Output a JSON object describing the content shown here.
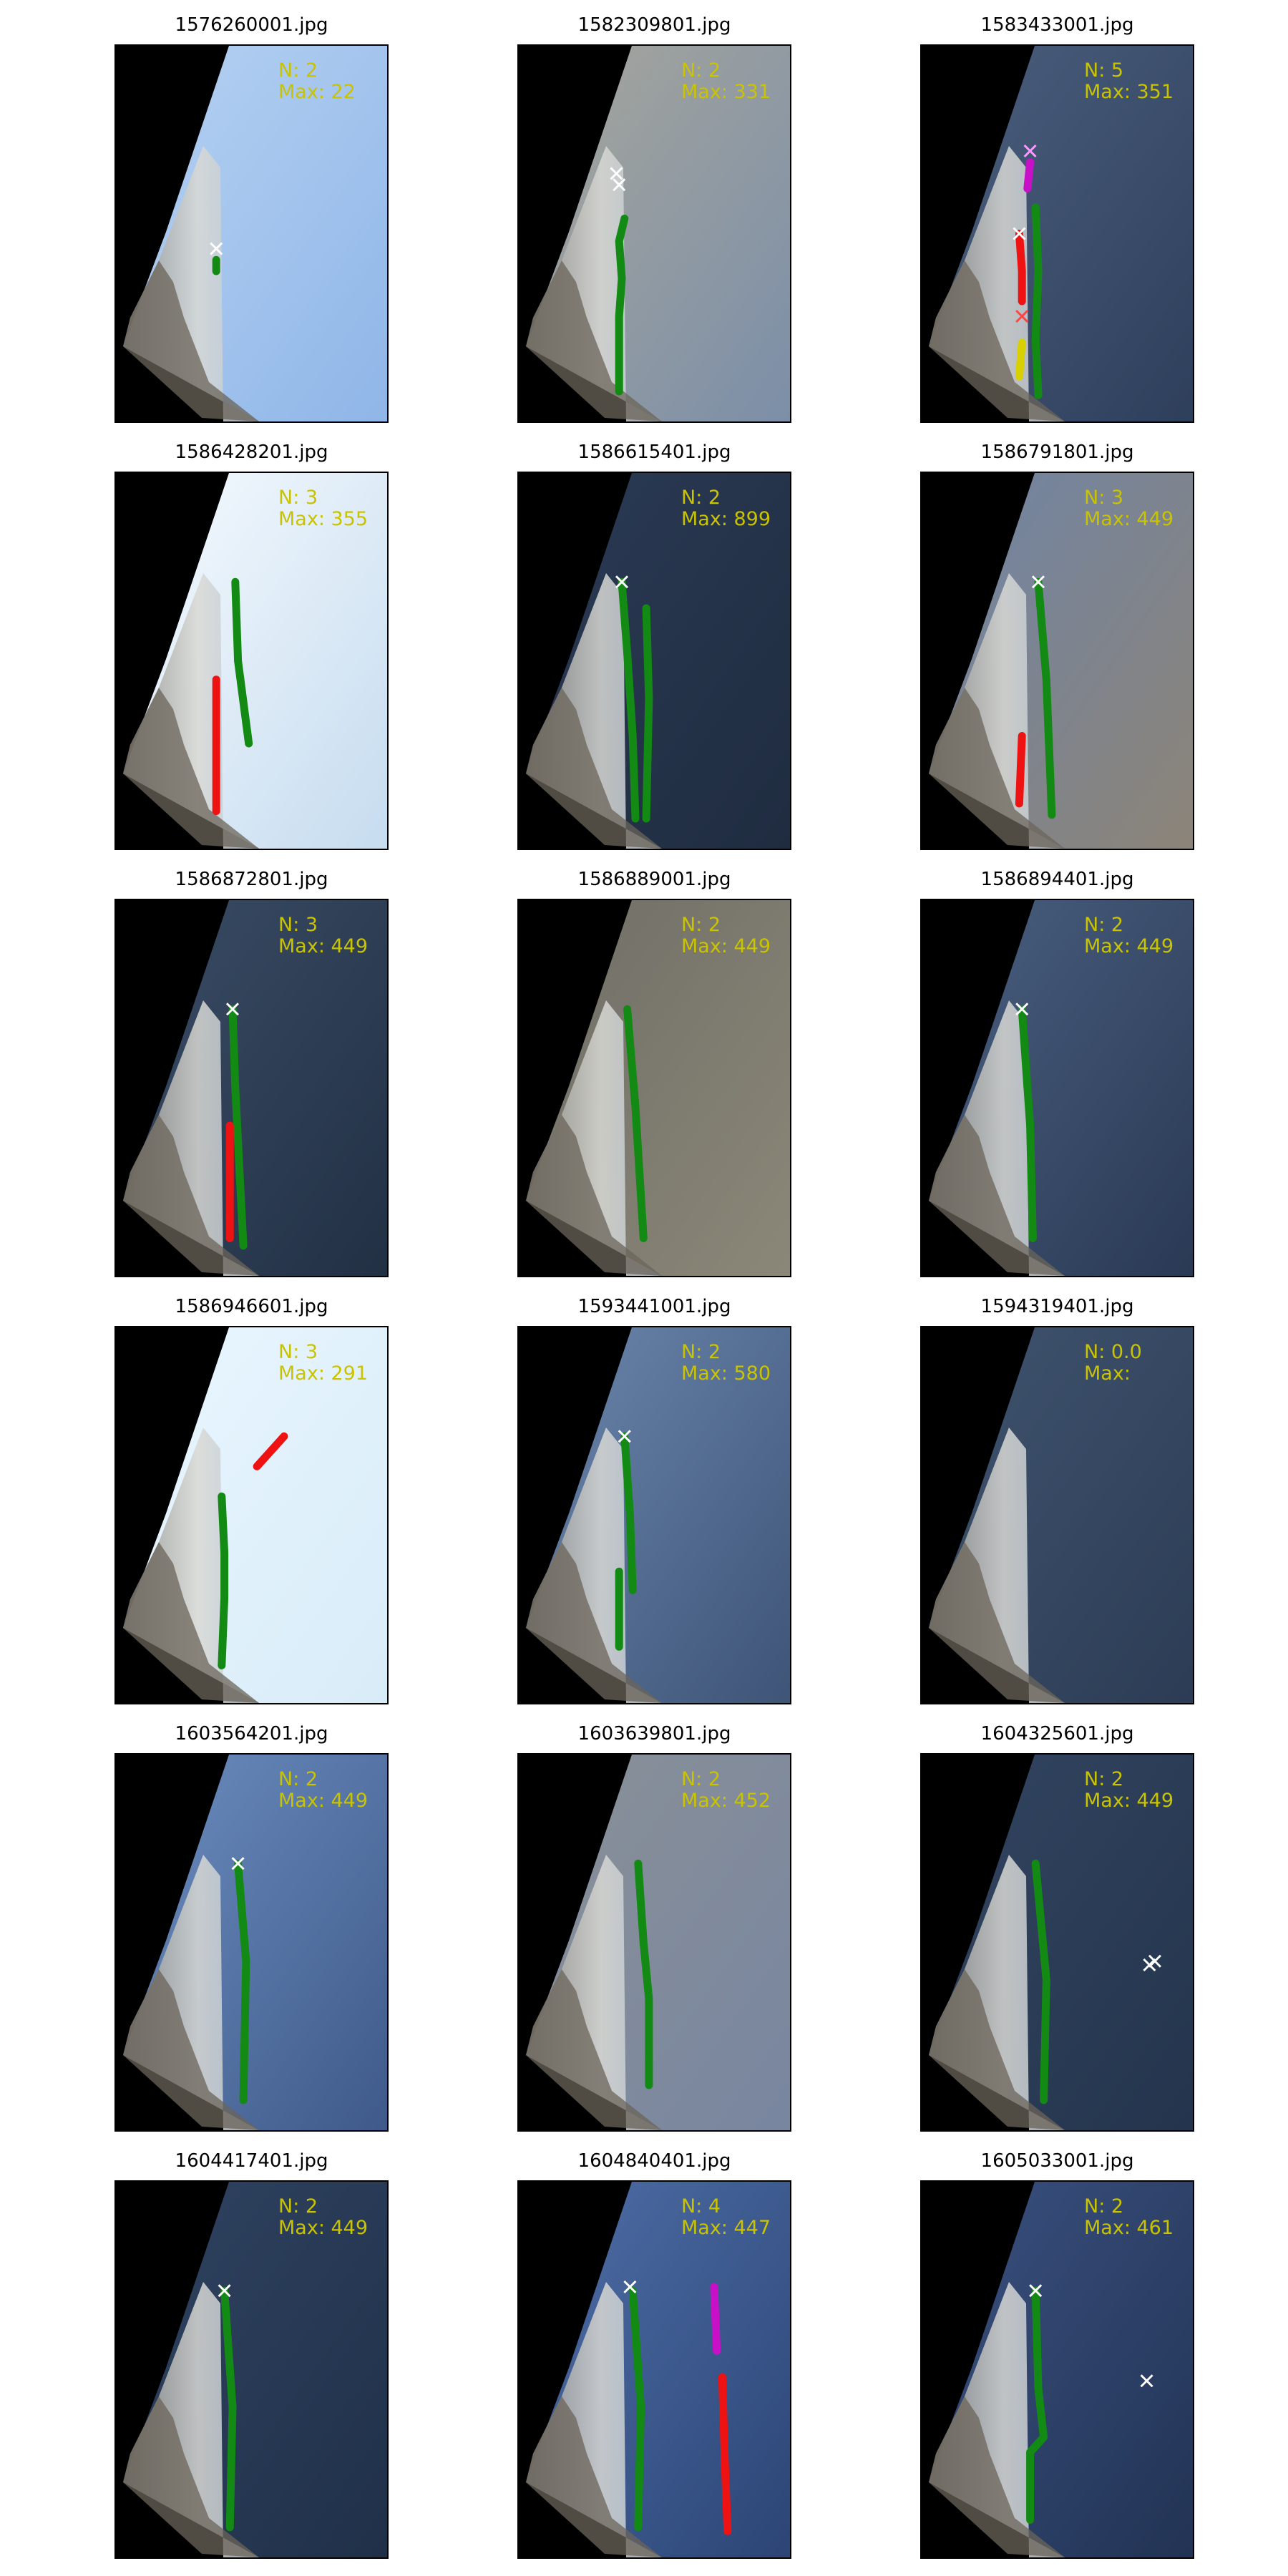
{
  "figure": {
    "panels": [
      {
        "title": "1576260001.jpg",
        "n": "N: 2",
        "max": "Max: 22",
        "sky": "#8fb6e8",
        "sky2": "#b7d2f2",
        "lines": [
          {
            "color": "#138a13",
            "points": [
              [
                0.37,
                0.57
              ],
              [
                0.37,
                0.6
              ]
            ]
          }
        ],
        "marks": [
          {
            "color": "#ffffff",
            "p": [
              0.37,
              0.54
            ]
          }
        ]
      },
      {
        "title": "1582309801.jpg",
        "n": "N: 2",
        "max": "Max: 331",
        "sky": "#7c8fa8",
        "sky2": "#a7a69c",
        "lines": [
          {
            "color": "#138a13",
            "points": [
              [
                0.39,
                0.46
              ],
              [
                0.37,
                0.52
              ],
              [
                0.38,
                0.62
              ],
              [
                0.37,
                0.72
              ],
              [
                0.37,
                0.82
              ],
              [
                0.37,
                0.92
              ]
            ]
          }
        ],
        "marks": [
          {
            "color": "#ffffff",
            "p": [
              0.36,
              0.34
            ]
          },
          {
            "color": "#ffffff",
            "p": [
              0.37,
              0.37
            ]
          }
        ]
      },
      {
        "title": "1583433001.jpg",
        "n": "N: 5",
        "max": "Max: 351",
        "sky": "#2e3f5c",
        "sky2": "#4b5f7e",
        "lines": [
          {
            "color": "#c810c8",
            "points": [
              [
                0.4,
                0.31
              ],
              [
                0.39,
                0.38
              ]
            ]
          },
          {
            "color": "#138a13",
            "points": [
              [
                0.42,
                0.43
              ],
              [
                0.43,
                0.6
              ],
              [
                0.42,
                0.78
              ],
              [
                0.43,
                0.93
              ]
            ]
          },
          {
            "color": "#ee1212",
            "points": [
              [
                0.36,
                0.5
              ],
              [
                0.37,
                0.6
              ],
              [
                0.37,
                0.68
              ]
            ]
          },
          {
            "color": "#d8d000",
            "points": [
              [
                0.37,
                0.79
              ],
              [
                0.36,
                0.88
              ]
            ]
          }
        ],
        "marks": [
          {
            "color": "#ffffff",
            "p": [
              0.36,
              0.5
            ]
          },
          {
            "color": "#ff4444",
            "p": [
              0.37,
              0.72
            ]
          },
          {
            "color": "#ff99ff",
            "p": [
              0.4,
              0.28
            ]
          }
        ]
      },
      {
        "title": "1586428201.jpg",
        "n": "N: 3",
        "max": "Max: 355",
        "sky": "#c6dcef",
        "sky2": "#f7fbff",
        "lines": [
          {
            "color": "#138a13",
            "points": [
              [
                0.44,
                0.29
              ],
              [
                0.45,
                0.5
              ],
              [
                0.49,
                0.72
              ]
            ]
          },
          {
            "color": "#ee1212",
            "points": [
              [
                0.37,
                0.55
              ],
              [
                0.37,
                0.7
              ],
              [
                0.37,
                0.9
              ]
            ]
          }
        ],
        "marks": []
      },
      {
        "title": "1586615401.jpg",
        "n": "N: 2",
        "max": "Max: 899",
        "sky": "#1f2c40",
        "sky2": "#2b3b55",
        "lines": [
          {
            "color": "#138a13",
            "points": [
              [
                0.38,
                0.29
              ],
              [
                0.4,
                0.48
              ],
              [
                0.42,
                0.7
              ],
              [
                0.43,
                0.92
              ]
            ]
          },
          {
            "color": "#138a13",
            "points": [
              [
                0.47,
                0.36
              ],
              [
                0.48,
                0.6
              ],
              [
                0.47,
                0.92
              ]
            ]
          }
        ],
        "marks": [
          {
            "color": "#ffffff",
            "p": [
              0.38,
              0.29
            ]
          }
        ]
      },
      {
        "title": "1586791801.jpg",
        "n": "N: 3",
        "max": "Max: 449",
        "sky": "#8c8478",
        "sky2": "#6f84a6",
        "lines": [
          {
            "color": "#138a13",
            "points": [
              [
                0.43,
                0.29
              ],
              [
                0.46,
                0.55
              ],
              [
                0.48,
                0.91
              ]
            ]
          },
          {
            "color": "#ee1212",
            "points": [
              [
                0.37,
                0.7
              ],
              [
                0.36,
                0.88
              ]
            ]
          }
        ],
        "marks": [
          {
            "color": "#ffffff",
            "p": [
              0.43,
              0.29
            ]
          }
        ]
      },
      {
        "title": "1586872801.jpg",
        "n": "N: 3",
        "max": "Max: 449",
        "sky": "#223044",
        "sky2": "#3a4d66",
        "lines": [
          {
            "color": "#138a13",
            "points": [
              [
                0.43,
                0.29
              ],
              [
                0.44,
                0.5
              ],
              [
                0.47,
                0.92
              ]
            ]
          },
          {
            "color": "#ee1212",
            "points": [
              [
                0.42,
                0.6
              ],
              [
                0.42,
                0.9
              ]
            ]
          }
        ],
        "marks": [
          {
            "color": "#ffffff",
            "p": [
              0.43,
              0.29
            ]
          }
        ]
      },
      {
        "title": "1586889001.jpg",
        "n": "N: 2",
        "max": "Max: 449",
        "sky": "#8b8778",
        "sky2": "#6f6e66",
        "lines": [
          {
            "color": "#138a13",
            "points": [
              [
                0.4,
                0.29
              ],
              [
                0.43,
                0.55
              ],
              [
                0.46,
                0.9
              ]
            ]
          }
        ],
        "marks": []
      },
      {
        "title": "1586894401.jpg",
        "n": "N: 2",
        "max": "Max: 449",
        "sky": "#2a3a55",
        "sky2": "#4a5f80",
        "lines": [
          {
            "color": "#138a13",
            "points": [
              [
                0.37,
                0.29
              ],
              [
                0.4,
                0.6
              ],
              [
                0.41,
                0.9
              ]
            ]
          }
        ],
        "marks": [
          {
            "color": "#ffffff",
            "p": [
              0.37,
              0.29
            ]
          }
        ]
      },
      {
        "title": "1586946601.jpg",
        "n": "N: 3",
        "max": "Max: 291",
        "sky": "#d8ecf8",
        "sky2": "#eaf6ff",
        "lines": [
          {
            "color": "#ee1212",
            "points": [
              [
                0.52,
                0.37
              ],
              [
                0.62,
                0.29
              ]
            ]
          },
          {
            "color": "#138a13",
            "points": [
              [
                0.39,
                0.45
              ],
              [
                0.4,
                0.6
              ],
              [
                0.4,
                0.72
              ],
              [
                0.39,
                0.9
              ]
            ]
          }
        ],
        "marks": []
      },
      {
        "title": "1593441001.jpg",
        "n": "N: 2",
        "max": "Max: 580",
        "sky": "#3e5578",
        "sky2": "#6c86ad",
        "lines": [
          {
            "color": "#138a13",
            "points": [
              [
                0.39,
                0.29
              ],
              [
                0.41,
                0.5
              ],
              [
                0.42,
                0.7
              ]
            ]
          },
          {
            "color": "#138a13",
            "points": [
              [
                0.37,
                0.65
              ],
              [
                0.37,
                0.85
              ]
            ]
          }
        ],
        "marks": [
          {
            "color": "#ffffff",
            "p": [
              0.39,
              0.29
            ]
          }
        ]
      },
      {
        "title": "1594319401.jpg",
        "n": "N: 0.0",
        "max": "Max:",
        "sky": "#2c3c55",
        "sky2": "#40546f",
        "lines": [],
        "marks": []
      },
      {
        "title": "1603564201.jpg",
        "n": "N: 2",
        "max": "Max: 449",
        "sky": "#3f5a8a",
        "sky2": "#6c8ec0",
        "lines": [
          {
            "color": "#138a13",
            "points": [
              [
                0.45,
                0.29
              ],
              [
                0.48,
                0.55
              ],
              [
                0.47,
                0.92
              ]
            ]
          }
        ],
        "marks": [
          {
            "color": "#ffffff",
            "p": [
              0.45,
              0.29
            ]
          }
        ]
      },
      {
        "title": "1603639801.jpg",
        "n": "N: 2",
        "max": "Max: 452",
        "sky": "#7886a0",
        "sky2": "#8a9097",
        "lines": [
          {
            "color": "#138a13",
            "points": [
              [
                0.44,
                0.29
              ],
              [
                0.46,
                0.5
              ],
              [
                0.48,
                0.65
              ],
              [
                0.48,
                0.88
              ]
            ]
          }
        ],
        "marks": []
      },
      {
        "title": "1604325601.jpg",
        "n": "N: 2",
        "max": "Max: 449",
        "sky": "#24344d",
        "sky2": "#324560",
        "lines": [
          {
            "color": "#138a13",
            "points": [
              [
                0.42,
                0.29
              ],
              [
                0.46,
                0.6
              ],
              [
                0.45,
                0.92
              ]
            ]
          }
        ],
        "marks": [
          {
            "color": "#ffffff",
            "p": [
              0.84,
              0.56
            ]
          },
          {
            "color": "#ffffff",
            "p": [
              0.86,
              0.55
            ]
          }
        ]
      },
      {
        "title": "1604417401.jpg",
        "n": "N: 2",
        "max": "Max: 449",
        "sky": "#203049",
        "sky2": "#2f4361",
        "lines": [
          {
            "color": "#138a13",
            "points": [
              [
                0.4,
                0.29
              ],
              [
                0.43,
                0.6
              ],
              [
                0.42,
                0.92
              ]
            ]
          }
        ],
        "marks": [
          {
            "color": "#ffffff",
            "p": [
              0.4,
              0.29
            ]
          }
        ]
      },
      {
        "title": "1604840401.jpg",
        "n": "N: 4",
        "max": "Max: 447",
        "sky": "#2c4576",
        "sky2": "#4f6fa8",
        "lines": [
          {
            "color": "#138a13",
            "points": [
              [
                0.42,
                0.29
              ],
              [
                0.45,
                0.6
              ],
              [
                0.44,
                0.92
              ]
            ]
          },
          {
            "color": "#c810c8",
            "points": [
              [
                0.72,
                0.28
              ],
              [
                0.73,
                0.45
              ]
            ]
          },
          {
            "color": "#ee1212",
            "points": [
              [
                0.75,
                0.52
              ],
              [
                0.76,
                0.75
              ],
              [
                0.77,
                0.93
              ]
            ]
          }
        ],
        "marks": [
          {
            "color": "#ffffff",
            "p": [
              0.41,
              0.28
            ]
          }
        ]
      },
      {
        "title": "1605033001.jpg",
        "n": "N: 2",
        "max": "Max: 461",
        "sky": "#223354",
        "sky2": "#3a5180",
        "lines": [
          {
            "color": "#138a13",
            "points": [
              [
                0.42,
                0.29
              ],
              [
                0.43,
                0.55
              ],
              [
                0.45,
                0.68
              ],
              [
                0.4,
                0.72
              ],
              [
                0.4,
                0.9
              ]
            ]
          }
        ],
        "marks": [
          {
            "color": "#ffffff",
            "p": [
              0.42,
              0.29
            ]
          },
          {
            "color": "#ffffff",
            "p": [
              0.83,
              0.53
            ]
          }
        ]
      }
    ]
  }
}
